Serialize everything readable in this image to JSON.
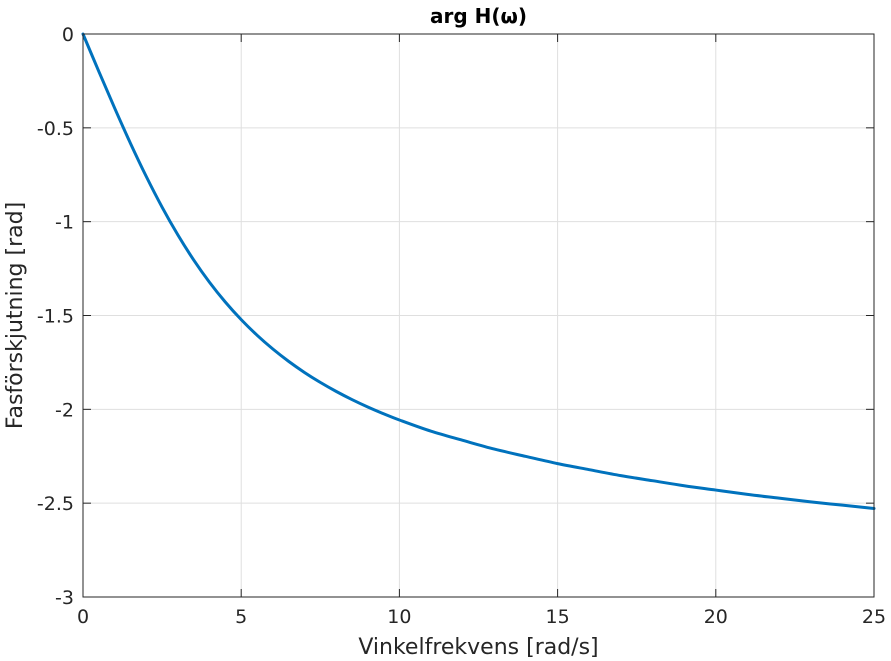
{
  "chart_data": {
    "type": "line",
    "title": "arg H(ω)",
    "xlabel": "Vinkelfrekvens [rad/s]",
    "ylabel": "Fasförskjutning [rad]",
    "xlim": [
      0,
      25
    ],
    "ylim": [
      -3,
      0
    ],
    "xticks": [
      0,
      5,
      10,
      15,
      20,
      25
    ],
    "yticks": [
      0,
      -0.5,
      -1,
      -1.5,
      -2,
      -2.5,
      -3
    ],
    "xtick_labels": [
      "0",
      "5",
      "10",
      "15",
      "20",
      "25"
    ],
    "ytick_labels": [
      "0",
      "-0.5",
      "-1",
      "-1.5",
      "-2",
      "-2.5",
      "-3"
    ],
    "grid": true,
    "series": [
      {
        "color": "#0072bd",
        "x": [
          0,
          0.5,
          1,
          1.5,
          2,
          2.5,
          3,
          3.5,
          4,
          4.5,
          5,
          5.5,
          6,
          6.5,
          7,
          7.5,
          8,
          8.5,
          9,
          9.5,
          10,
          11,
          12,
          13,
          14,
          15,
          16,
          17,
          18,
          19,
          20,
          21,
          22,
          23,
          24,
          25
        ],
        "y": [
          0,
          -0.1994,
          -0.3948,
          -0.5825,
          -0.7593,
          -0.9227,
          -1.0712,
          -1.2045,
          -1.3233,
          -1.4286,
          -1.522,
          -1.6049,
          -1.6786,
          -1.7444,
          -1.8034,
          -1.8564,
          -1.9043,
          -1.9478,
          -1.9874,
          -2.0236,
          -2.0569,
          -2.1167,
          -2.1652,
          -2.2119,
          -2.2511,
          -2.2892,
          -2.3215,
          -2.3531,
          -2.3802,
          -2.4071,
          -2.4302,
          -2.4534,
          -2.4733,
          -2.4933,
          -2.5107,
          -2.5282
        ]
      }
    ]
  }
}
